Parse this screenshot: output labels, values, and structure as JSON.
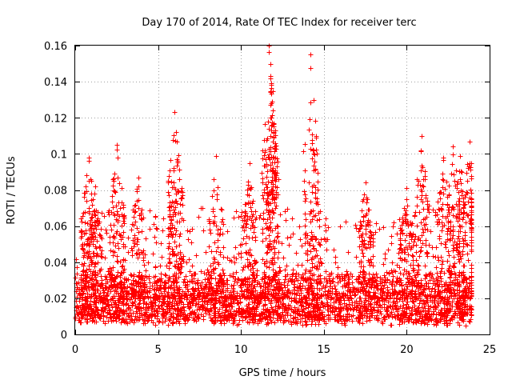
{
  "chart_data": {
    "type": "scatter",
    "title": "Day 170 of 2014, Rate Of TEC Index for receiver terc",
    "xlabel": "GPS time / hours",
    "ylabel": "ROTI / TECUs",
    "xlim": [
      0,
      25
    ],
    "ylim": [
      0,
      0.16
    ],
    "xticks": [
      0,
      5,
      10,
      15,
      20,
      25
    ],
    "yticks": [
      0,
      0.02,
      0.04,
      0.06,
      0.08,
      0.1,
      0.12,
      0.14,
      0.16
    ],
    "xtick_labels": [
      "0",
      "5",
      "10",
      "15",
      "20",
      "25"
    ],
    "ytick_labels": [
      "0",
      "0.02",
      "0.04",
      "0.06",
      "0.08",
      "0.1",
      "0.12",
      "0.14",
      "0.16"
    ],
    "grid": true,
    "marker": "+",
    "color": "#ff0000",
    "data_span_hours": [
      0,
      23.9
    ],
    "baseline_range": [
      0.005,
      0.03
    ],
    "peaks": [
      {
        "x": 0.8,
        "y": 0.098
      },
      {
        "x": 1.2,
        "y": 0.082
      },
      {
        "x": 2.5,
        "y": 0.105
      },
      {
        "x": 3.8,
        "y": 0.087
      },
      {
        "x": 6.0,
        "y": 0.123
      },
      {
        "x": 6.1,
        "y": 0.112
      },
      {
        "x": 8.5,
        "y": 0.099
      },
      {
        "x": 10.5,
        "y": 0.095
      },
      {
        "x": 11.7,
        "y": 0.16
      },
      {
        "x": 11.8,
        "y": 0.143
      },
      {
        "x": 11.9,
        "y": 0.124
      },
      {
        "x": 14.2,
        "y": 0.155
      },
      {
        "x": 14.3,
        "y": 0.111
      },
      {
        "x": 17.5,
        "y": 0.084
      },
      {
        "x": 20.0,
        "y": 0.081
      },
      {
        "x": 20.9,
        "y": 0.11
      },
      {
        "x": 22.2,
        "y": 0.098
      },
      {
        "x": 22.8,
        "y": 0.104
      },
      {
        "x": 23.2,
        "y": 0.099
      },
      {
        "x": 23.8,
        "y": 0.107
      }
    ]
  }
}
